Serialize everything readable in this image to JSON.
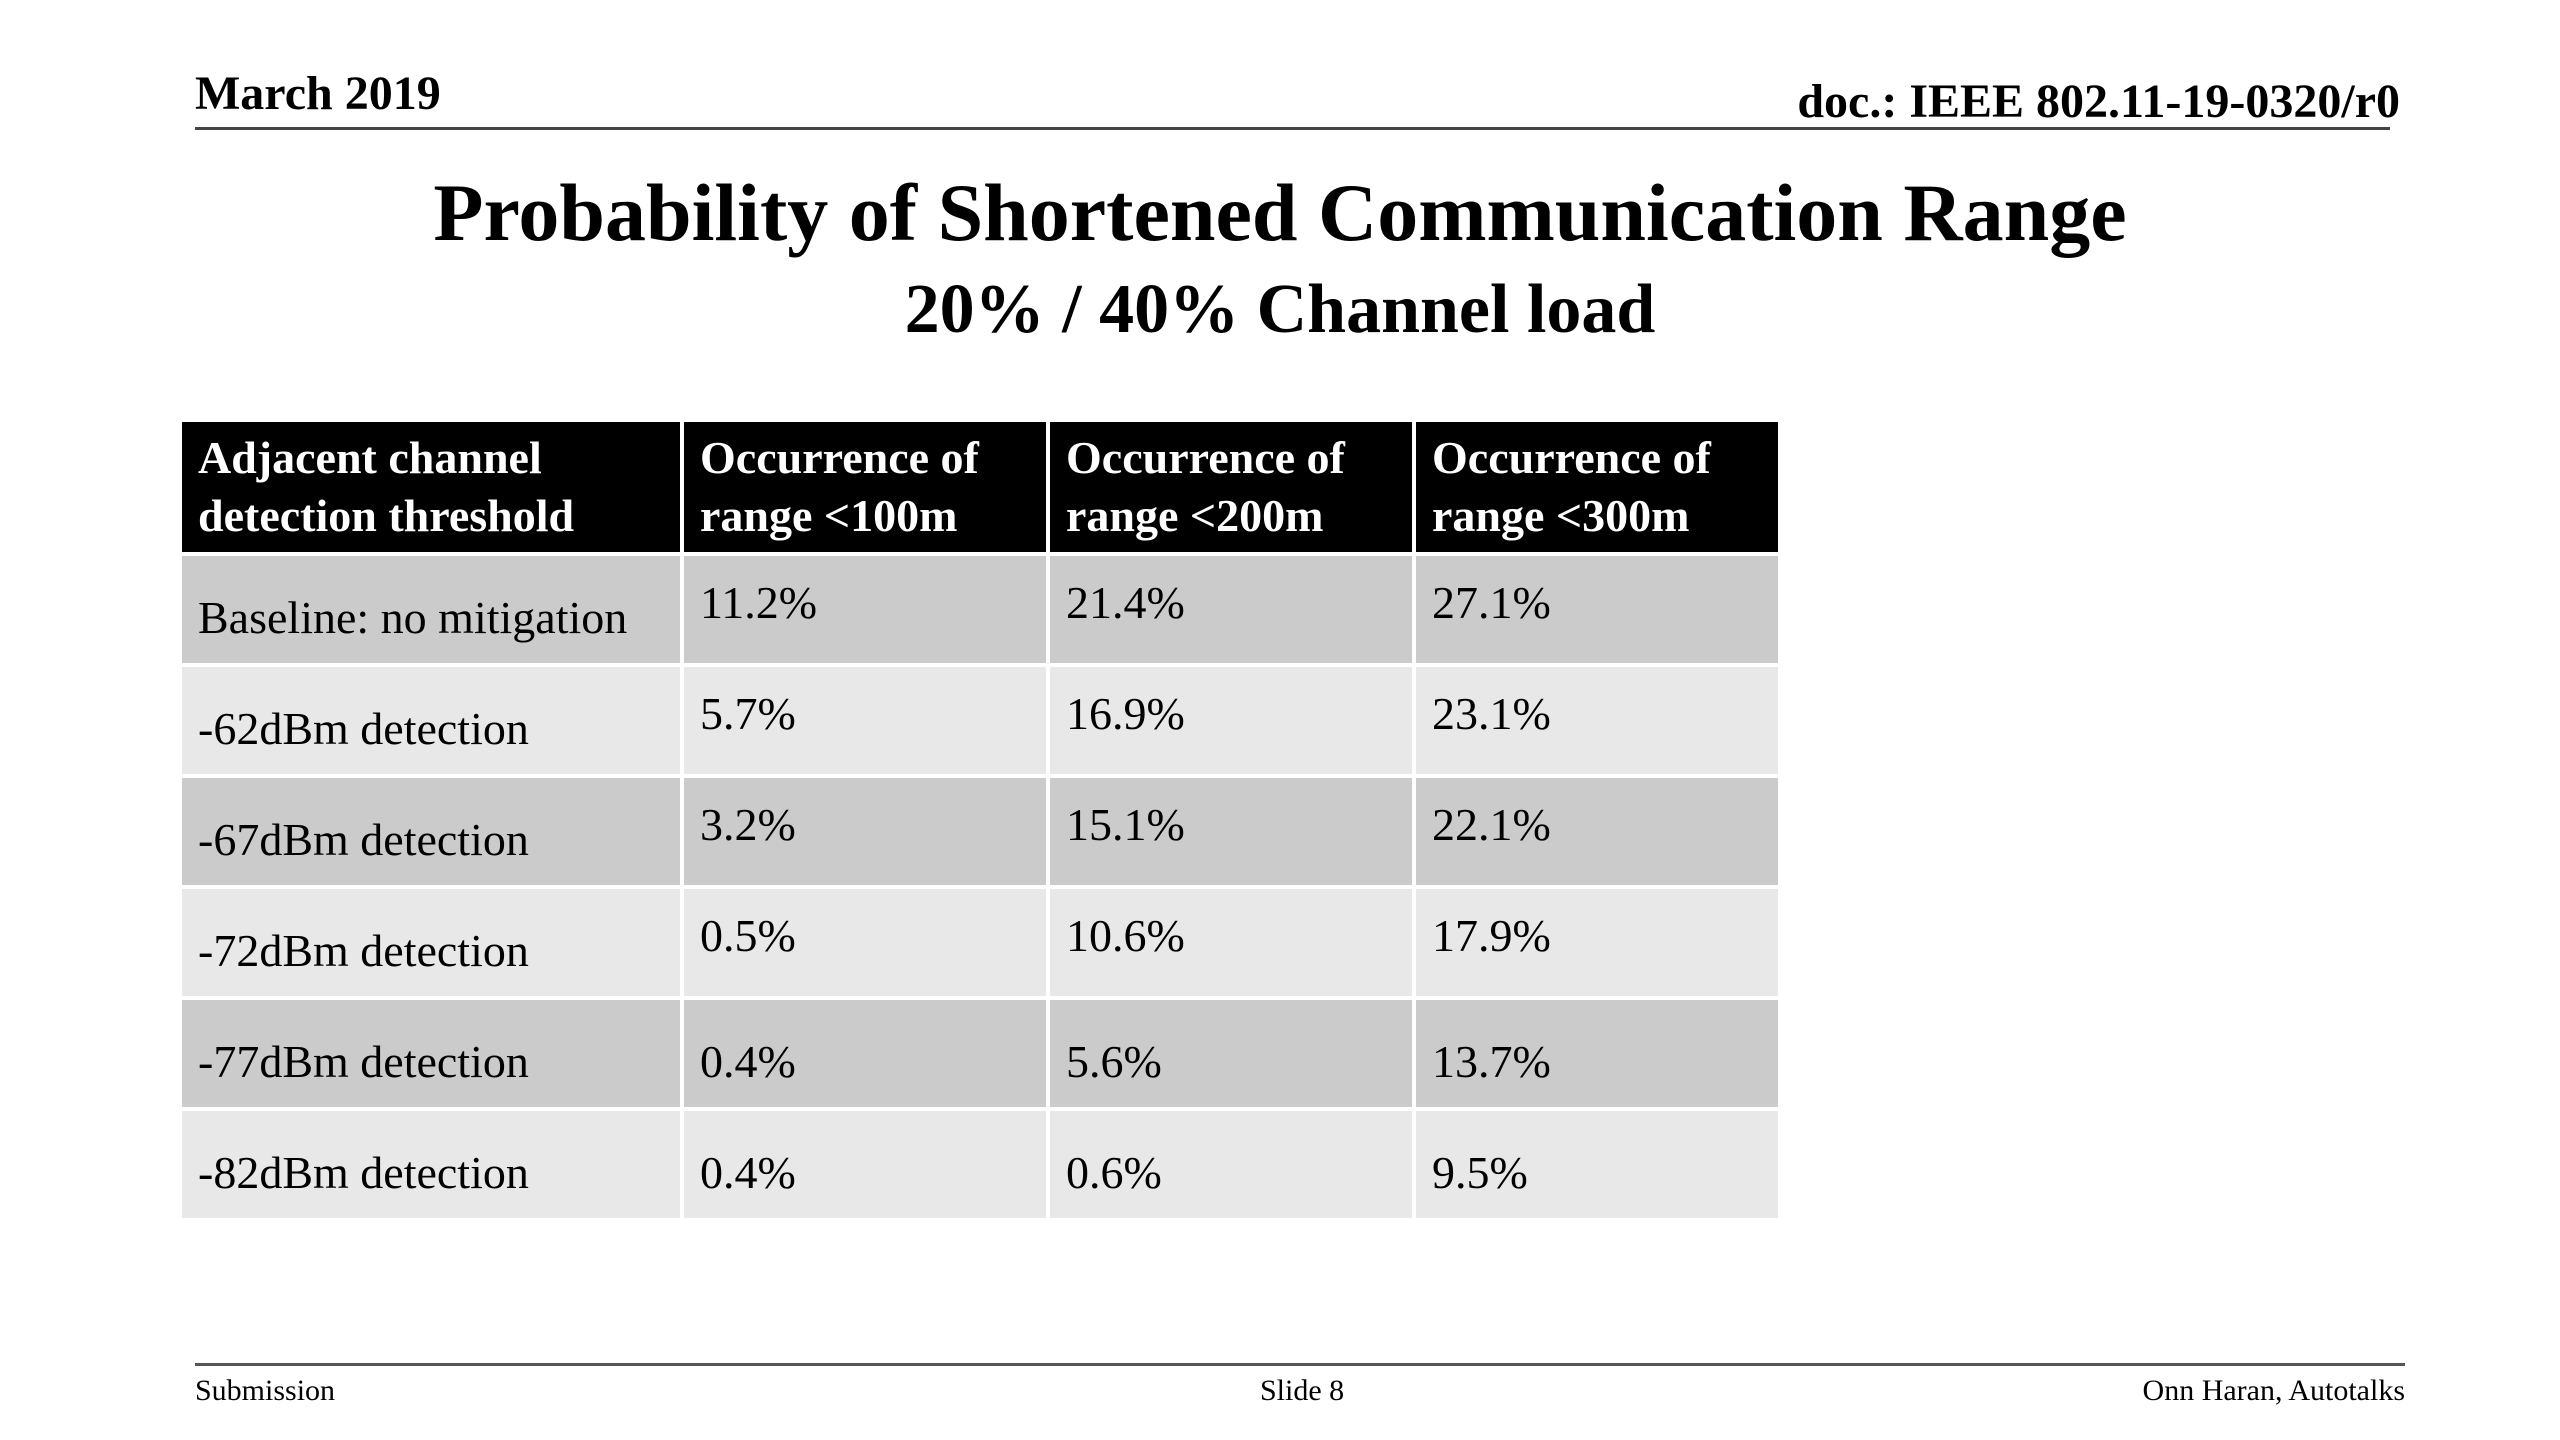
{
  "header": {
    "date": "March 2019",
    "doc_id": "doc.: IEEE 802.11-19-0320/r0"
  },
  "title": "Probability of Shortened Communication Range",
  "subtitle": "20% / 40% Channel load",
  "table": {
    "headers": [
      [
        "Adjacent channel",
        "detection threshold"
      ],
      [
        "Occurrence of",
        "range <100m"
      ],
      [
        "Occurrence of",
        "range <200m"
      ],
      [
        "Occurrence of",
        "range <300m"
      ]
    ],
    "rows": [
      [
        "Baseline: no mitigation",
        "11.2%",
        "21.4%",
        "27.1%"
      ],
      [
        "-62dBm detection",
        "5.7%",
        "16.9%",
        "23.1%"
      ],
      [
        "-67dBm detection",
        "3.2%",
        "15.1%",
        "22.1%"
      ],
      [
        "-72dBm detection",
        "0.5%",
        "10.6%",
        "17.9%"
      ],
      [
        "-77dBm detection",
        "0.4%",
        "5.6%",
        "13.7%"
      ],
      [
        "-82dBm detection",
        "0.4%",
        "0.6%",
        "9.5%"
      ]
    ]
  },
  "footer": {
    "left": "Submission",
    "center": "Slide 8",
    "right": "Onn Haran, Autotalks"
  }
}
